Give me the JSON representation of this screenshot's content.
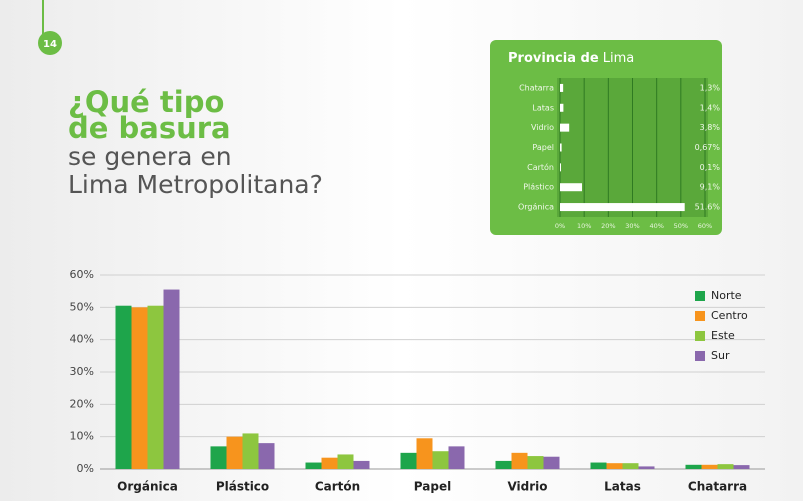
{
  "header": {
    "page_number": "14",
    "title_bold": [
      "¿Qué tipo",
      "de basura"
    ],
    "title_regular": [
      "se genera en",
      "Lima Metropolitana?"
    ]
  },
  "chart_data": [
    {
      "type": "barh",
      "title_parts": [
        "Provincia de",
        "Lima"
      ],
      "categories": [
        "Chatarra",
        "Latas",
        "Vidrio",
        "Papel",
        "Cartón",
        "Plástico",
        "Orgánica"
      ],
      "values": [
        1.3,
        1.4,
        3.8,
        0.67,
        0.1,
        9.1,
        51.6
      ],
      "value_labels": [
        "1,3%",
        "1,4%",
        "3,8%",
        "0,67%",
        "0,1%",
        "9,1%",
        "51.6%"
      ],
      "color": "#ffffff",
      "xlim": [
        0,
        60
      ],
      "xticks": [
        {
          "value": 0,
          "label": "0%"
        },
        {
          "value": 10,
          "label": "10%"
        },
        {
          "value": 20,
          "label": "20%"
        },
        {
          "value": 30,
          "label": "30%"
        },
        {
          "value": 40,
          "label": "40%"
        },
        {
          "value": 50,
          "label": "50%"
        },
        {
          "value": 60,
          "label": "60%"
        }
      ],
      "grid": true
    },
    {
      "type": "bar",
      "categories": [
        "Orgánica",
        "Plástico",
        "Cartón",
        "Papel",
        "Vidrio",
        "Latas",
        "Chatarra"
      ],
      "series": [
        {
          "name": "Norte",
          "color": "#1ea54b",
          "values": [
            50.5,
            7,
            2,
            5,
            2.5,
            2,
            1.3
          ]
        },
        {
          "name": "Centro",
          "color": "#f7941d",
          "values": [
            50,
            10,
            3.5,
            9.5,
            5,
            1.8,
            1.3
          ]
        },
        {
          "name": "Este",
          "color": "#8dc63f",
          "values": [
            50.5,
            11,
            4.5,
            5.5,
            4,
            1.8,
            1.5
          ]
        },
        {
          "name": "Sur",
          "color": "#8a68ad",
          "values": [
            55.5,
            8,
            2.5,
            7,
            3.8,
            0.8,
            1.2
          ]
        }
      ],
      "ylim": [
        0,
        60
      ],
      "yticks": [
        {
          "value": 0,
          "label": "0%"
        },
        {
          "value": 10,
          "label": "10%"
        },
        {
          "value": 20,
          "label": "20%"
        },
        {
          "value": 30,
          "label": "30%"
        },
        {
          "value": 40,
          "label": "40%"
        },
        {
          "value": 50,
          "label": "50%"
        },
        {
          "value": 60,
          "label": "60%"
        }
      ],
      "grid": true,
      "legend": "upper right"
    }
  ]
}
